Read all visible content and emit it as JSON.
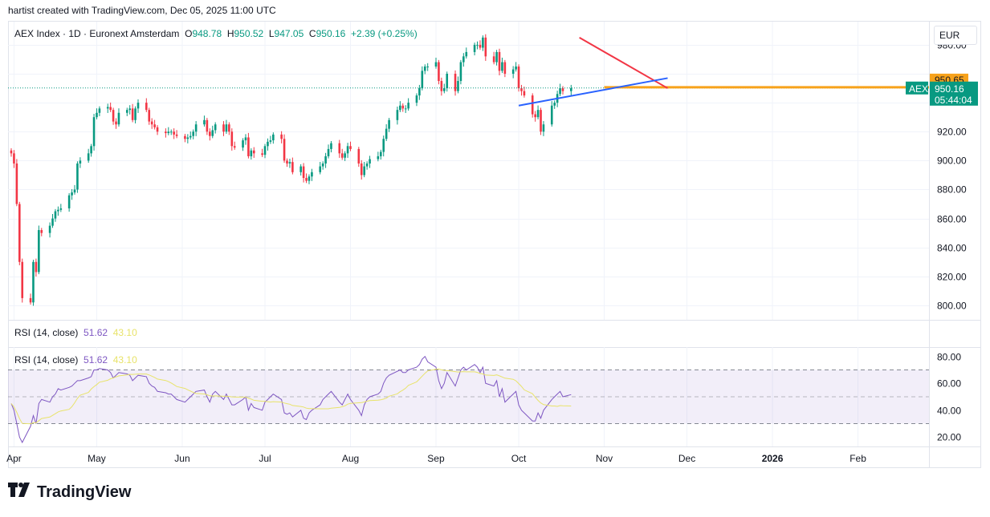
{
  "header": {
    "attribution": "hartist created with TradingView.com, Dec 05, 2025 11:00 UTC"
  },
  "legend": {
    "symbol": "AEX Index · 1D · Euronext Amsterdam",
    "open_label": "O",
    "open": "948.78",
    "high_label": "H",
    "high": "950.52",
    "low_label": "L",
    "low": "947.05",
    "close_label": "C",
    "close": "950.16",
    "change": "+2.39 (+0.25%)"
  },
  "currency": "EUR",
  "rsi_legend_1": {
    "label": "RSI (14, close)",
    "rsi": "51.62",
    "ma": "43.10"
  },
  "rsi_legend_2": {
    "label": "RSI (14, close)",
    "rsi": "51.62",
    "ma": "43.10"
  },
  "price_tags": {
    "level_value": "950.65",
    "symbol_tag": "AEX",
    "last_price": "950.16",
    "countdown": "05:44:04"
  },
  "logo_text": "TradingView",
  "colors": {
    "up": "#089981",
    "down": "#f23645",
    "rsi": "#7e57c2",
    "rsi_ma": "#e8e36a",
    "trend_red": "#f23645",
    "trend_blue": "#2962ff",
    "level": "#f7a21b"
  },
  "chart_data": {
    "type": "candlestick",
    "price_axis": {
      "ticks": [
        980,
        960,
        940,
        920,
        900,
        880,
        860,
        840,
        820,
        800
      ],
      "tick_labels": [
        "980.00",
        "",
        "",
        "920.00",
        "900.00",
        "880.00",
        "860.00",
        "840.00",
        "820.00",
        "800.00"
      ],
      "range": [
        790,
        996
      ]
    },
    "rsi_axis": {
      "ticks": [
        80,
        60,
        40,
        20
      ],
      "tick_labels": [
        "80.00",
        "60.00",
        "40.00",
        "20.00"
      ],
      "range": [
        13,
        87
      ],
      "band": [
        30,
        70
      ],
      "mid": 50
    },
    "time_axis": {
      "labels": [
        "Apr",
        "May",
        "Jun",
        "Jul",
        "Aug",
        "Sep",
        "Oct",
        "Nov",
        "Dec",
        "2026",
        "Feb"
      ],
      "dates": [
        "2025-04-01",
        "2025-05-01",
        "2025-06-01",
        "2025-07-01",
        "2025-08-01",
        "2025-09-01",
        "2025-10-01",
        "2025-11-01",
        "2025-12-01",
        "2026-01-01",
        "2026-02-01"
      ],
      "bold": [
        "2026"
      ]
    },
    "start_date": "2025-03-31",
    "closes": [
      905,
      898,
      870,
      830,
      805,
      802,
      830,
      823,
      852,
      850,
      855,
      860,
      865,
      866,
      867,
      876,
      878,
      880,
      898,
      900,
      905,
      910,
      930,
      933,
      936,
      937,
      935,
      927,
      925,
      933,
      935,
      936,
      928,
      936,
      940,
      935,
      927,
      925,
      923,
      920,
      919,
      920,
      920,
      918,
      917,
      915,
      916,
      917,
      920,
      925,
      928,
      920,
      917,
      921,
      925,
      920,
      925,
      920,
      910,
      909,
      914,
      916,
      903,
      907,
      905,
      904,
      910,
      913,
      914,
      918,
      915,
      900,
      898,
      899,
      892,
      896,
      888,
      886,
      889,
      892,
      896,
      898,
      903,
      908,
      912,
      905,
      902,
      905,
      910,
      908,
      898,
      890,
      896,
      898,
      901,
      903,
      906,
      915,
      922,
      928,
      935,
      938,
      936,
      936,
      940,
      945,
      950,
      962,
      965,
      965,
      968,
      955,
      948,
      950,
      960,
      948,
      955,
      968,
      972,
      975,
      980,
      980,
      978,
      985,
      972,
      968,
      975,
      962,
      968,
      960,
      963,
      965,
      950,
      948,
      945,
      932,
      930,
      935,
      920,
      925,
      938,
      940,
      946,
      950,
      948,
      950
    ],
    "rsi": [
      45,
      40,
      30,
      20,
      16,
      28,
      36,
      30,
      45,
      48,
      46,
      50,
      52,
      56,
      55,
      57,
      58,
      60,
      62,
      62,
      64,
      65,
      70,
      70,
      71,
      70,
      68,
      64,
      66,
      68,
      67,
      66,
      62,
      64,
      66,
      65,
      60,
      58,
      57,
      54,
      53,
      52,
      52,
      50,
      48,
      46,
      48,
      50,
      52,
      54,
      55,
      50,
      46,
      52,
      54,
      48,
      52,
      48,
      44,
      44,
      48,
      50,
      40,
      45,
      42,
      40,
      46,
      48,
      50,
      52,
      48,
      38,
      37,
      38,
      35,
      40,
      34,
      33,
      38,
      40,
      44,
      48,
      50,
      52,
      54,
      46,
      44,
      48,
      52,
      48,
      40,
      36,
      44,
      48,
      50,
      52,
      54,
      60,
      64,
      66,
      69,
      70,
      68,
      68,
      70,
      72,
      74,
      78,
      80,
      76,
      72,
      62,
      56,
      60,
      68,
      58,
      64,
      70,
      72,
      70,
      74,
      72,
      68,
      72,
      60,
      58,
      62,
      50,
      56,
      46,
      52,
      54,
      44,
      40,
      38,
      32,
      32,
      38,
      34,
      40,
      48,
      50,
      52,
      54,
      50,
      51.62
    ],
    "annotations": {
      "red_trendline": {
        "from": [
          "2025-10-23",
          985
        ],
        "to": [
          "2025-11-24",
          950
        ]
      },
      "blue_trendline": {
        "from": [
          "2025-10-01",
          938
        ],
        "to": [
          "2025-11-24",
          957
        ]
      },
      "level_line": {
        "from": [
          "2025-11-01",
          950.65
        ],
        "value": 950.65
      },
      "last_price_line": 950.16
    }
  }
}
